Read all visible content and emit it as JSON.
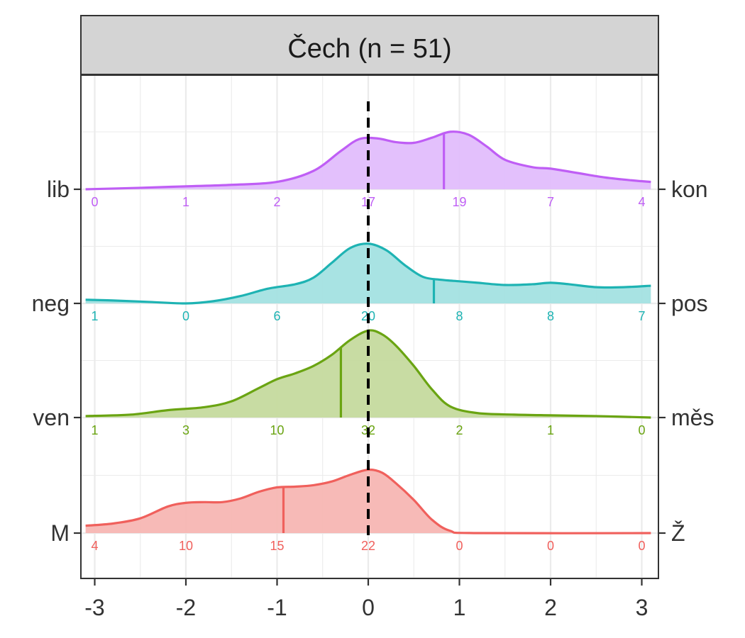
{
  "chart_data": {
    "type": "ridgeline-density",
    "title": "Čech (n = 51)",
    "xlabel": "",
    "ylabel": "",
    "xlim": [
      -3.1,
      3.1
    ],
    "x_ticks": [
      -3,
      -2,
      -1,
      0,
      1,
      2,
      3
    ],
    "x_tick_labels": [
      "-3",
      "-2",
      "-1",
      "0",
      "1",
      "2",
      "3"
    ],
    "reference_line_x": 0,
    "grid": true,
    "count_positions": [
      -3,
      -2,
      -1,
      0,
      1,
      2,
      3
    ],
    "series": [
      {
        "left_label": "M",
        "right_label": "Ž",
        "color": "#F0605C",
        "fill": "#F7B6B3",
        "mean": -0.93,
        "counts": [
          "4",
          "10",
          "15",
          "22",
          "0",
          "0",
          "0"
        ],
        "density": [
          [
            -3.1,
            0.1
          ],
          [
            -2.8,
            0.13
          ],
          [
            -2.5,
            0.2
          ],
          [
            -2.2,
            0.36
          ],
          [
            -2.0,
            0.41
          ],
          [
            -1.8,
            0.42
          ],
          [
            -1.6,
            0.42
          ],
          [
            -1.4,
            0.47
          ],
          [
            -1.2,
            0.56
          ],
          [
            -1.0,
            0.62
          ],
          [
            -0.8,
            0.63
          ],
          [
            -0.6,
            0.65
          ],
          [
            -0.4,
            0.7
          ],
          [
            -0.2,
            0.79
          ],
          [
            0.0,
            0.86
          ],
          [
            0.15,
            0.82
          ],
          [
            0.3,
            0.68
          ],
          [
            0.5,
            0.45
          ],
          [
            0.7,
            0.18
          ],
          [
            0.9,
            0.03
          ],
          [
            1.2,
            0.0
          ],
          [
            3.1,
            0.0
          ]
        ]
      },
      {
        "left_label": "ven",
        "right_label": "měs",
        "color": "#6AA412",
        "fill": "#C5DA9E",
        "mean": -0.3,
        "counts": [
          "1",
          "3",
          "10",
          "32",
          "2",
          "1",
          "0"
        ],
        "density": [
          [
            -3.1,
            0.02
          ],
          [
            -2.6,
            0.04
          ],
          [
            -2.2,
            0.1
          ],
          [
            -1.8,
            0.14
          ],
          [
            -1.5,
            0.22
          ],
          [
            -1.2,
            0.4
          ],
          [
            -1.0,
            0.52
          ],
          [
            -0.8,
            0.6
          ],
          [
            -0.6,
            0.7
          ],
          [
            -0.4,
            0.85
          ],
          [
            -0.2,
            1.05
          ],
          [
            0.0,
            1.18
          ],
          [
            0.15,
            1.13
          ],
          [
            0.3,
            0.98
          ],
          [
            0.5,
            0.7
          ],
          [
            0.7,
            0.38
          ],
          [
            0.9,
            0.15
          ],
          [
            1.2,
            0.06
          ],
          [
            1.6,
            0.04
          ],
          [
            2.0,
            0.03
          ],
          [
            2.5,
            0.02
          ],
          [
            3.1,
            0.0
          ]
        ]
      },
      {
        "left_label": "neg",
        "right_label": "pos",
        "color": "#1EB3B3",
        "fill": "#A3E1E1",
        "mean": 0.72,
        "counts": [
          "1",
          "0",
          "6",
          "20",
          "8",
          "8",
          "7"
        ],
        "density": [
          [
            -3.1,
            0.05
          ],
          [
            -2.8,
            0.04
          ],
          [
            -2.4,
            0.02
          ],
          [
            -2.0,
            0.0
          ],
          [
            -1.7,
            0.03
          ],
          [
            -1.4,
            0.1
          ],
          [
            -1.1,
            0.2
          ],
          [
            -0.8,
            0.26
          ],
          [
            -0.6,
            0.35
          ],
          [
            -0.4,
            0.55
          ],
          [
            -0.2,
            0.75
          ],
          [
            0.0,
            0.81
          ],
          [
            0.2,
            0.72
          ],
          [
            0.4,
            0.52
          ],
          [
            0.6,
            0.36
          ],
          [
            0.8,
            0.32
          ],
          [
            1.0,
            0.3
          ],
          [
            1.2,
            0.28
          ],
          [
            1.5,
            0.25
          ],
          [
            1.8,
            0.26
          ],
          [
            2.0,
            0.28
          ],
          [
            2.2,
            0.26
          ],
          [
            2.5,
            0.22
          ],
          [
            2.8,
            0.22
          ],
          [
            3.1,
            0.24
          ]
        ]
      },
      {
        "left_label": "lib",
        "right_label": "kon",
        "color": "#BF5EF5",
        "fill": "#E2BDFC",
        "mean": 0.83,
        "counts": [
          "0",
          "1",
          "2",
          "17",
          "19",
          "7",
          "4"
        ],
        "density": [
          [
            -3.1,
            0.0
          ],
          [
            -2.5,
            0.02
          ],
          [
            -2.0,
            0.04
          ],
          [
            -1.5,
            0.06
          ],
          [
            -1.0,
            0.1
          ],
          [
            -0.6,
            0.25
          ],
          [
            -0.3,
            0.52
          ],
          [
            -0.1,
            0.68
          ],
          [
            0.1,
            0.69
          ],
          [
            0.3,
            0.64
          ],
          [
            0.5,
            0.63
          ],
          [
            0.7,
            0.7
          ],
          [
            0.9,
            0.78
          ],
          [
            1.1,
            0.74
          ],
          [
            1.3,
            0.58
          ],
          [
            1.5,
            0.4
          ],
          [
            1.8,
            0.3
          ],
          [
            2.0,
            0.28
          ],
          [
            2.3,
            0.22
          ],
          [
            2.6,
            0.16
          ],
          [
            2.9,
            0.12
          ],
          [
            3.1,
            0.1
          ]
        ]
      }
    ]
  }
}
